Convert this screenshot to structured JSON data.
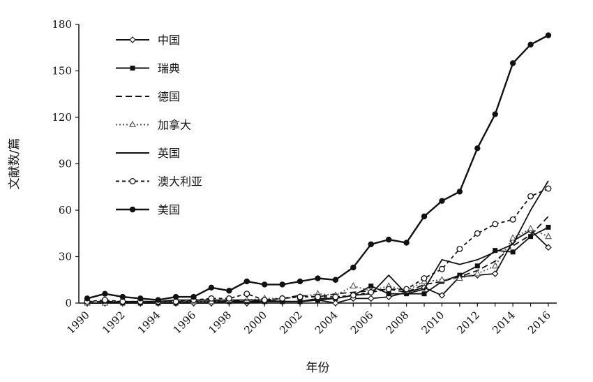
{
  "chart_data": {
    "type": "line",
    "xlabel": "年份",
    "ylabel": "文献数/篇",
    "ylim": [
      0,
      180
    ],
    "yticks": [
      0,
      30,
      60,
      90,
      120,
      150,
      180
    ],
    "x": [
      1990,
      1991,
      1992,
      1993,
      1994,
      1995,
      1996,
      1997,
      1998,
      1999,
      2000,
      2001,
      2002,
      2003,
      2004,
      2005,
      2006,
      2007,
      2008,
      2009,
      2010,
      2011,
      2012,
      2013,
      2014,
      2015,
      2016
    ],
    "xticks": [
      "1990",
      "1992",
      "1994",
      "1996",
      "1998",
      "2000",
      "2002",
      "2004",
      "2006",
      "2008",
      "2010",
      "2012",
      "2014",
      "2016"
    ],
    "grid": false,
    "legend_position": "top-left",
    "series": [
      {
        "name": "中国",
        "style": "solid",
        "marker": "diamond-open",
        "color": "#111111",
        "values": [
          0,
          0,
          1,
          0,
          0,
          0,
          0,
          0,
          1,
          0,
          1,
          1,
          1,
          2,
          0,
          3,
          3,
          4,
          7,
          10,
          5,
          17,
          18,
          19,
          40,
          47,
          36
        ]
      },
      {
        "name": "瑞典",
        "style": "solid",
        "marker": "square-filled",
        "color": "#111111",
        "values": [
          0,
          0,
          0,
          0,
          0,
          0,
          1,
          1,
          1,
          1,
          1,
          1,
          1,
          2,
          3,
          5,
          11,
          6,
          6,
          6,
          14,
          18,
          24,
          34,
          33,
          43,
          49
        ]
      },
      {
        "name": "德国",
        "style": "dashed",
        "marker": "none",
        "color": "#111111",
        "values": [
          1,
          1,
          1,
          0,
          1,
          1,
          1,
          1,
          2,
          1,
          2,
          3,
          5,
          4,
          6,
          7,
          8,
          9,
          7,
          12,
          14,
          17,
          21,
          27,
          37,
          44,
          56
        ]
      },
      {
        "name": "加拿大",
        "style": "dotted",
        "marker": "triangle-open",
        "color": "#555555",
        "values": [
          0,
          0,
          1,
          1,
          1,
          1,
          1,
          1,
          2,
          2,
          3,
          3,
          4,
          6,
          5,
          11,
          8,
          11,
          8,
          14,
          15,
          16,
          19,
          24,
          42,
          48,
          43
        ]
      },
      {
        "name": "英国",
        "style": "solid",
        "marker": "none",
        "color": "#111111",
        "values": [
          0,
          0,
          1,
          1,
          1,
          2,
          2,
          2,
          2,
          2,
          2,
          1,
          1,
          3,
          3,
          5,
          6,
          18,
          6,
          9,
          28,
          25,
          28,
          33,
          38,
          60,
          79
        ]
      },
      {
        "name": "澳大利亚",
        "style": "shortdash",
        "marker": "circle-open",
        "color": "#111111",
        "values": [
          1,
          2,
          1,
          1,
          1,
          1,
          2,
          3,
          3,
          6,
          2,
          3,
          4,
          4,
          4,
          5,
          7,
          9,
          9,
          16,
          22,
          35,
          45,
          51,
          54,
          69,
          74
        ]
      },
      {
        "name": "美国",
        "style": "solid",
        "marker": "circle-filled",
        "color": "#111111",
        "values": [
          3,
          6,
          4,
          3,
          2,
          4,
          4,
          10,
          8,
          14,
          12,
          12,
          14,
          16,
          15,
          23,
          38,
          41,
          39,
          56,
          66,
          72,
          100,
          122,
          155,
          167,
          173
        ]
      }
    ]
  }
}
